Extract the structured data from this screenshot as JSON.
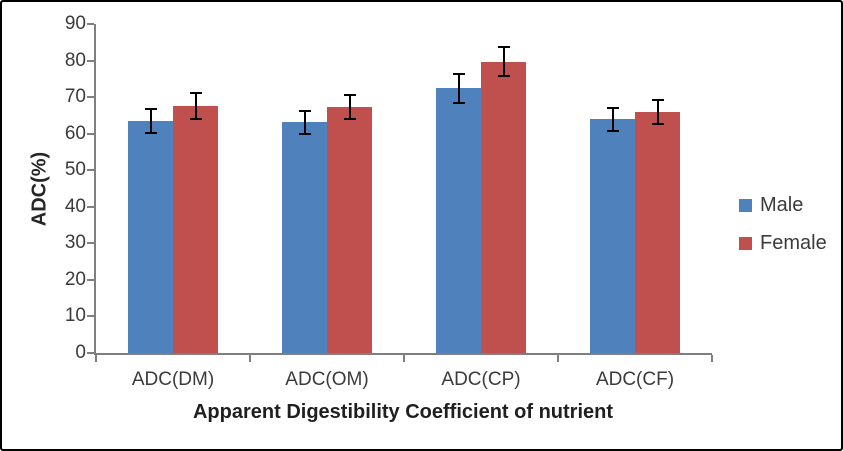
{
  "figure": {
    "background": "#ffffff",
    "border_color": "#000000"
  },
  "chart_data": {
    "type": "bar",
    "title": "",
    "xlabel": "Apparent Digestibility Coefficient of nutrient",
    "ylabel": "ADC(%)",
    "categories": [
      "ADC(DM)",
      "ADC(OM)",
      "ADC(CP)",
      "ADC(CF)"
    ],
    "series": [
      {
        "name": "Male",
        "color": "#4F81BD",
        "values": [
          63.4,
          63.1,
          72.4,
          63.9
        ],
        "errors": [
          3.3,
          3.1,
          3.9,
          3.2
        ]
      },
      {
        "name": "Female",
        "color": "#C0504D",
        "values": [
          67.5,
          67.3,
          79.7,
          65.9
        ],
        "errors": [
          3.5,
          3.3,
          4.0,
          3.2
        ]
      }
    ],
    "ylim": [
      0,
      90
    ],
    "ytick_step": 10,
    "ytick_labels": [
      "90",
      "80",
      "70",
      "60",
      "50",
      "40",
      "30",
      "20",
      "10",
      "0"
    ],
    "grid": false,
    "legend_position": "right",
    "axis_color": "#7f7f7f",
    "error_bar_color": "#000000"
  }
}
